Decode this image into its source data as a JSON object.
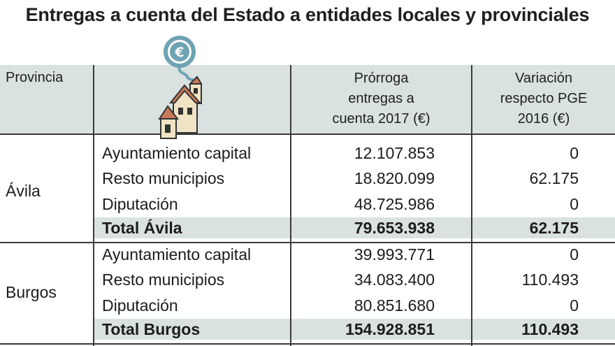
{
  "title": "Entregas a cuenta del Estado a entidades locales y provinciales",
  "header": {
    "provincia": "Provincia",
    "prorroga": [
      "Prórroga",
      "entregas a",
      "cuenta 2017 (€)"
    ],
    "variacion": [
      "Variación",
      "respecto PGE",
      "2016 (€)"
    ],
    "icon": "euro-town-hall-icon"
  },
  "provinces": [
    {
      "name": "Ávila",
      "rows": [
        {
          "label": "Ayuntamiento capital",
          "prorroga": "12.107.853",
          "variacion": "0"
        },
        {
          "label": "Resto municipios",
          "prorroga": "18.820.099",
          "variacion": "62.175"
        },
        {
          "label": "Diputación",
          "prorroga": "48.725.986",
          "variacion": "0"
        }
      ],
      "total": {
        "label": "Total Ávila",
        "prorroga": "79.653.938",
        "variacion": "62.175"
      }
    },
    {
      "name": "Burgos",
      "rows": [
        {
          "label": "Ayuntamiento capital",
          "prorroga": "39.993.771",
          "variacion": "0"
        },
        {
          "label": "Resto municipios",
          "prorroga": "34.083.400",
          "variacion": "110.493"
        },
        {
          "label": "Diputación",
          "prorroga": "80.851.680",
          "variacion": "0"
        }
      ],
      "total": {
        "label": "Total Burgos",
        "prorroga": "154.928.851",
        "variacion": "110.493"
      }
    }
  ],
  "colors": {
    "header_bg": "#d9e2e1",
    "grid": "#3a3a3a",
    "icon_euro": "#6ea3b3",
    "icon_roof": "#c97a5a",
    "icon_wall": "#f0e3c4"
  }
}
